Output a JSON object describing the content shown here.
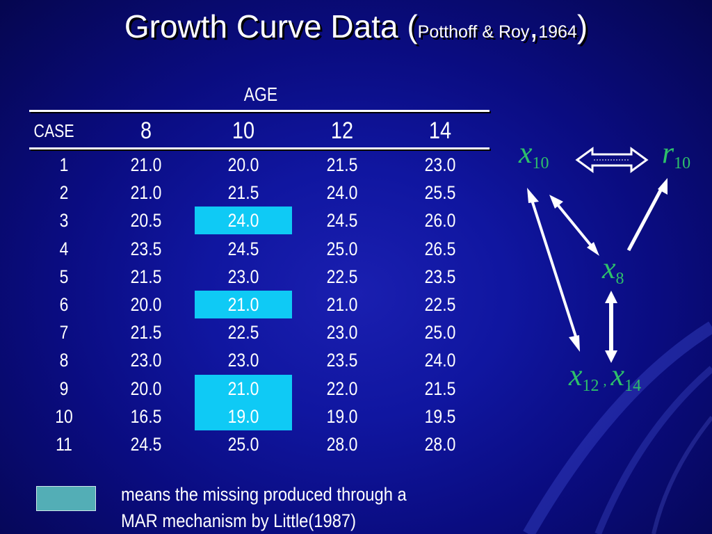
{
  "slide": {
    "title_main": "Growth Curve Data (",
    "title_small": "Potthoff & Roy",
    "title_comma": ",",
    "title_year": "1964",
    "title_close": ")"
  },
  "table": {
    "group_header": "AGE",
    "case_header": "CASE",
    "age_columns": [
      "8",
      "10",
      "12",
      "14"
    ],
    "rows": [
      {
        "case": "1",
        "values": [
          "21.0",
          "20.0",
          "21.5",
          "23.0"
        ],
        "missing_age10": false
      },
      {
        "case": "2",
        "values": [
          "21.0",
          "21.5",
          "24.0",
          "25.5"
        ],
        "missing_age10": false
      },
      {
        "case": "3",
        "values": [
          "20.5",
          "24.0",
          "24.5",
          "26.0"
        ],
        "missing_age10": true
      },
      {
        "case": "4",
        "values": [
          "23.5",
          "24.5",
          "25.0",
          "26.5"
        ],
        "missing_age10": false
      },
      {
        "case": "5",
        "values": [
          "21.5",
          "23.0",
          "22.5",
          "23.5"
        ],
        "missing_age10": false
      },
      {
        "case": "6",
        "values": [
          "20.0",
          "21.0",
          "21.0",
          "22.5"
        ],
        "missing_age10": true
      },
      {
        "case": "7",
        "values": [
          "21.5",
          "22.5",
          "23.0",
          "25.0"
        ],
        "missing_age10": false
      },
      {
        "case": "8",
        "values": [
          "23.0",
          "23.0",
          "23.5",
          "24.0"
        ],
        "missing_age10": false
      },
      {
        "case": "9",
        "values": [
          "20.0",
          "21.0",
          "22.0",
          "21.5"
        ],
        "missing_age10": true
      },
      {
        "case": "10",
        "values": [
          "16.5",
          "19.0",
          "19.0",
          "19.5"
        ],
        "missing_age10": true
      },
      {
        "case": "11",
        "values": [
          "24.5",
          "25.0",
          "28.0",
          "28.0"
        ],
        "missing_age10": false
      }
    ],
    "highlight_color": "#0fcaf5"
  },
  "legend": {
    "swatch_color": "#53aeb6",
    "line1": "means the missing produced through a",
    "line2": "MAR mechanism by Little(1987)"
  },
  "diagram": {
    "nodes": {
      "x10": {
        "base": "x",
        "sub": "10"
      },
      "r10": {
        "base": "r",
        "sub": "10"
      },
      "x8": {
        "base": "x",
        "sub": "8"
      },
      "x12": {
        "base": "x",
        "sub": "12"
      },
      "sep": ",",
      "x14": {
        "base": "x",
        "sub": "14"
      }
    },
    "node_color": "#2ec06a"
  }
}
